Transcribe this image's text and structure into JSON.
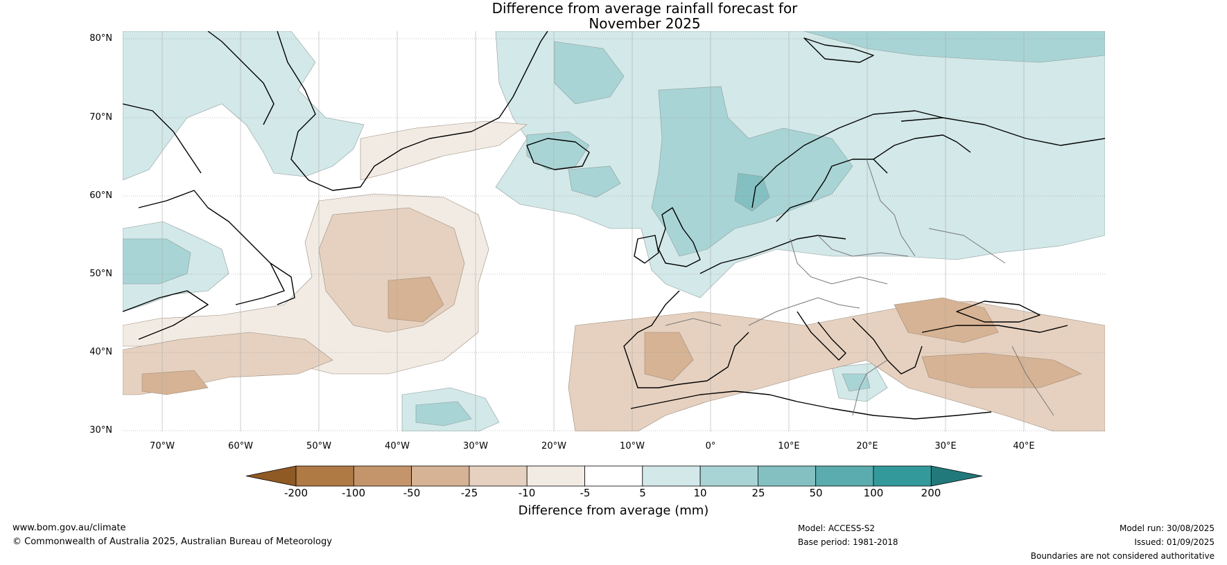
{
  "title_line1": "Difference from average rainfall forecast for",
  "title_line2": "November 2025",
  "lat_labels": [
    "80°N",
    "70°N",
    "60°N",
    "50°N",
    "40°N",
    "30°N"
  ],
  "lon_labels": [
    "70°W",
    "60°W",
    "50°W",
    "40°W",
    "30°W",
    "20°W",
    "10°W",
    "0°",
    "10°E",
    "20°E",
    "30°E",
    "40°E"
  ],
  "colorbar": {
    "ticks": [
      "-200",
      "-100",
      "-50",
      "-25",
      "-10",
      "-5",
      "5",
      "10",
      "25",
      "50",
      "100",
      "200"
    ],
    "colors": [
      "#8f5a24",
      "#b07a45",
      "#c4946a",
      "#d6b394",
      "#e6d1c0",
      "#f2ebe4",
      "#ffffff",
      "#d3e8e8",
      "#a9d4d5",
      "#84c0c1",
      "#5aacae",
      "#34999b",
      "#22797b"
    ],
    "label": "Difference from average (mm)"
  },
  "footer": {
    "website": "www.bom.gov.au/climate",
    "copyright": "© Commonwealth of Australia 2025, Australian Bureau of Meteorology",
    "model": "Model: ACCESS-S2",
    "base_period": "Base period: 1981-2018",
    "model_run": "Model run: 30/08/2025",
    "issued": "Issued: 01/09/2025",
    "disclaimer": "Boundaries are not considered authoritative"
  }
}
